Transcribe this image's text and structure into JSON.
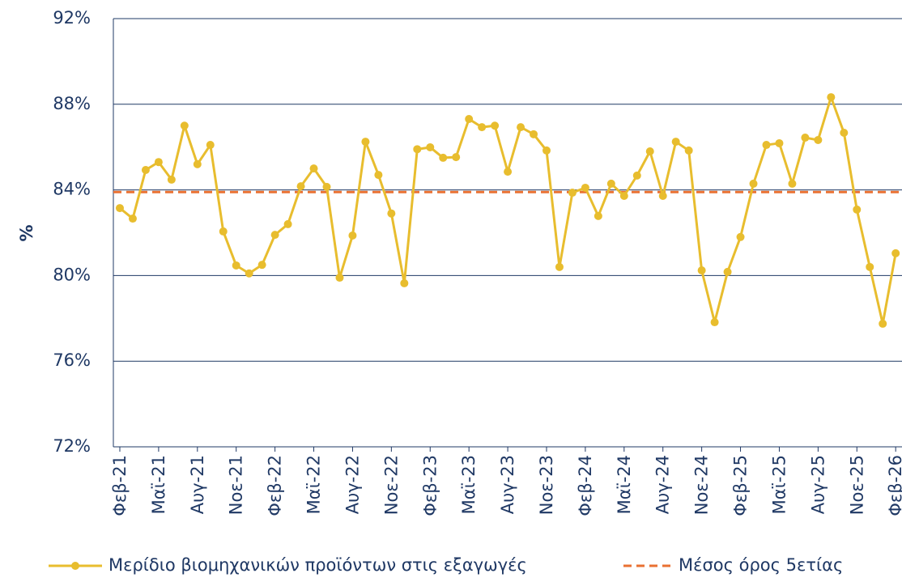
{
  "chart_data": {
    "type": "line",
    "y_label": "%",
    "categories": [
      "Φεβ-21",
      null,
      null,
      "Μαϊ-21",
      null,
      null,
      "Αυγ-21",
      null,
      null,
      "Νοε-21",
      null,
      null,
      "Φεβ-22",
      null,
      null,
      "Μαϊ-22",
      null,
      null,
      "Αυγ-22",
      null,
      null,
      "Νοε-22",
      null,
      null,
      "Φεβ-23",
      null,
      null,
      "Μαϊ-23",
      null,
      null,
      "Αυγ-23",
      null,
      null,
      "Νοε-23",
      null,
      null,
      "Φεβ-24",
      null,
      null,
      "Μαϊ-24",
      null,
      null,
      "Αυγ-24",
      null,
      null,
      "Νοε-24",
      null,
      null,
      "Φεβ-25",
      null,
      null,
      "Μαϊ-25",
      null,
      null,
      "Αυγ-25",
      null,
      null,
      "Νοε-25",
      null,
      null,
      "Φεβ-26"
    ],
    "series": [
      {
        "name": "Μερίδιο βιομηχανικών προϊόντων στις εξαγωγές",
        "color": "#e8bd2e",
        "values": [
          83.15,
          82.66,
          84.93,
          85.3,
          84.48,
          87.0,
          85.2,
          86.1,
          82.06,
          80.47,
          80.1,
          80.5,
          81.9,
          82.4,
          84.17,
          85.0,
          84.14,
          79.9,
          81.87,
          86.25,
          84.7,
          82.9,
          79.64,
          85.9,
          85.99,
          85.5,
          85.53,
          87.31,
          86.93,
          87.0,
          84.85,
          86.93,
          86.6,
          85.84,
          80.4,
          83.87,
          84.1,
          82.78,
          84.29,
          83.72,
          84.67,
          85.8,
          83.72,
          86.25,
          85.84,
          80.24,
          77.82,
          80.17,
          81.8,
          84.29,
          86.1,
          86.18,
          84.29,
          86.44,
          86.33,
          88.33,
          86.67,
          83.08,
          80.4,
          77.75,
          81.04
        ]
      }
    ],
    "average": {
      "name": "Μέσος όρος 5ετίας",
      "color": "#e97132",
      "value": 83.9
    },
    "ylim": [
      72,
      92
    ],
    "yticks": [
      {
        "value": 72,
        "label": "72%"
      },
      {
        "value": 76,
        "label": "76%"
      },
      {
        "value": 80,
        "label": "80%"
      },
      {
        "value": 84,
        "label": "84%"
      },
      {
        "value": 88,
        "label": "88%"
      },
      {
        "value": 92,
        "label": "92%"
      }
    ],
    "grid": true,
    "legend": "bottom"
  }
}
